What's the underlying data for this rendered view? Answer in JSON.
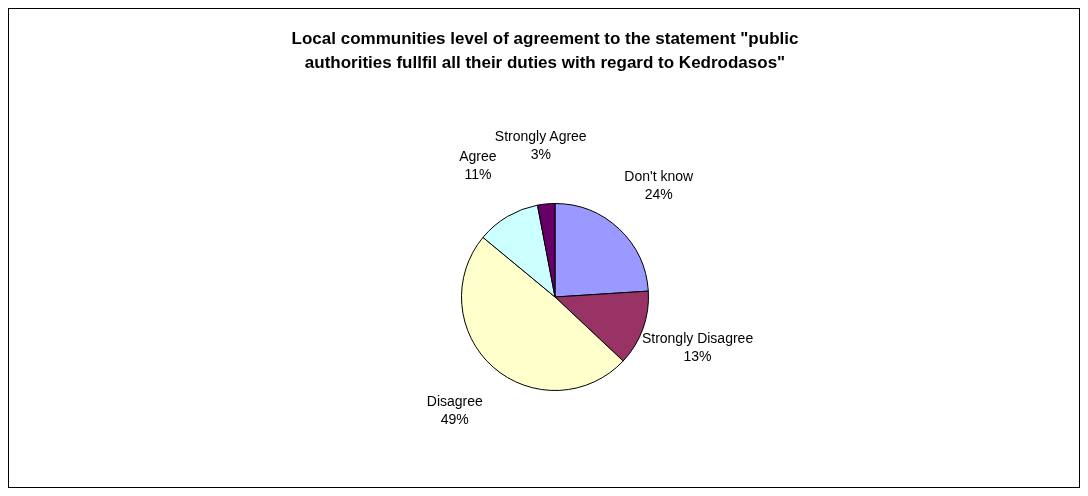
{
  "chart_data": {
    "type": "pie",
    "title": "Local communities level of agreement to the statement \"public\nauthorities fullfil all their duties with regard to Kedrodasos\"",
    "categories": [
      "Don't know",
      "Strongly Disagree",
      "Disagree",
      "Agree",
      "Strongly Agree"
    ],
    "values": [
      24,
      13,
      49,
      11,
      3
    ],
    "colors": [
      "#9999ff",
      "#993366",
      "#ffffcc",
      "#ccffff",
      "#660066"
    ],
    "value_labels": [
      "24%",
      "13%",
      "49%",
      "11%",
      "3%"
    ],
    "legend": false
  }
}
